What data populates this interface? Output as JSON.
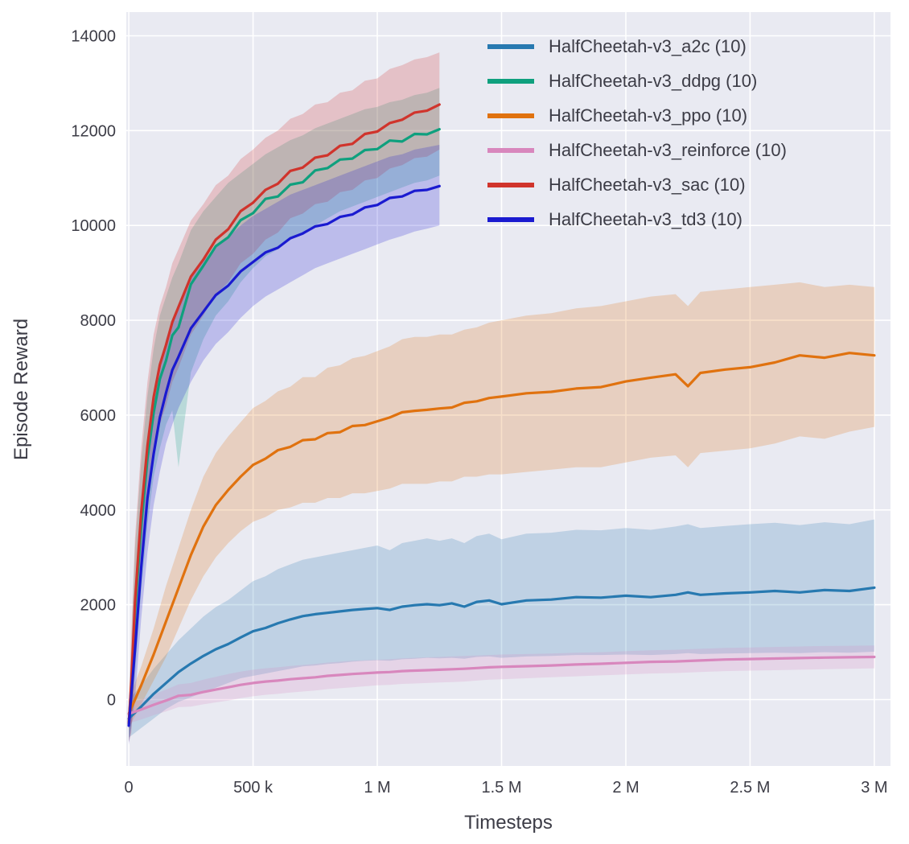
{
  "chart_data": {
    "type": "line",
    "title": "",
    "xlabel": "Timesteps",
    "ylabel": "Episode Reward",
    "xlim": [
      -10000,
      3065000
    ],
    "ylim": [
      -1400,
      14500
    ],
    "grid": true,
    "background": "#e9eaf2",
    "grid_color": "#ffffff",
    "text_color": "#3c3c46",
    "legend_position": "top-right",
    "x_ticks": [
      {
        "v": 0,
        "label": "0"
      },
      {
        "v": 500000,
        "label": "500 k"
      },
      {
        "v": 1000000,
        "label": "1 M"
      },
      {
        "v": 1500000,
        "label": "1.5 M"
      },
      {
        "v": 2000000,
        "label": "2 M"
      },
      {
        "v": 2500000,
        "label": "2.5 M"
      },
      {
        "v": 3000000,
        "label": "3 M"
      }
    ],
    "y_ticks": [
      {
        "v": 0,
        "label": "0"
      },
      {
        "v": 2000,
        "label": "2000"
      },
      {
        "v": 4000,
        "label": "4000"
      },
      {
        "v": 6000,
        "label": "6000"
      },
      {
        "v": 8000,
        "label": "8000"
      },
      {
        "v": 10000,
        "label": "10000"
      },
      {
        "v": 12000,
        "label": "12000"
      },
      {
        "v": 14000,
        "label": "14000"
      }
    ],
    "series": [
      {
        "name": "HalfCheetah-v3_a2c (10)",
        "color": "#2779b0",
        "x": [
          0,
          50000,
          100000,
          150000,
          200000,
          250000,
          300000,
          350000,
          400000,
          450000,
          500000,
          550000,
          600000,
          650000,
          700000,
          750000,
          800000,
          850000,
          900000,
          950000,
          1000000,
          1050000,
          1100000,
          1150000,
          1200000,
          1250000,
          1300000,
          1350000,
          1400000,
          1450000,
          1500000,
          1600000,
          1700000,
          1800000,
          1900000,
          2000000,
          2100000,
          2200000,
          2250000,
          2300000,
          2400000,
          2500000,
          2600000,
          2700000,
          2800000,
          2900000,
          3000000
        ],
        "mean": [
          -400,
          -150,
          120,
          350,
          580,
          760,
          920,
          1060,
          1170,
          1310,
          1440,
          1510,
          1610,
          1690,
          1760,
          1800,
          1830,
          1860,
          1890,
          1910,
          1930,
          1890,
          1960,
          1990,
          2010,
          1990,
          2030,
          1960,
          2060,
          2090,
          2010,
          2090,
          2110,
          2160,
          2150,
          2190,
          2160,
          2210,
          2260,
          2210,
          2240,
          2260,
          2290,
          2260,
          2310,
          2290,
          2360
        ],
        "lower": [
          -800,
          -600,
          -400,
          -200,
          -50,
          50,
          150,
          250,
          350,
          450,
          500,
          550,
          600,
          650,
          700,
          720,
          750,
          770,
          800,
          820,
          830,
          820,
          850,
          860,
          880,
          870,
          880,
          860,
          900,
          910,
          880,
          910,
          920,
          940,
          940,
          950,
          940,
          960,
          980,
          960,
          970,
          980,
          990,
          980,
          1000,
          990,
          1010
        ],
        "upper": [
          0,
          300,
          650,
          950,
          1250,
          1500,
          1750,
          1950,
          2100,
          2300,
          2500,
          2600,
          2750,
          2850,
          2950,
          3000,
          3050,
          3100,
          3150,
          3200,
          3250,
          3150,
          3300,
          3350,
          3400,
          3350,
          3400,
          3300,
          3450,
          3500,
          3380,
          3500,
          3520,
          3580,
          3570,
          3620,
          3580,
          3650,
          3700,
          3620,
          3660,
          3700,
          3730,
          3680,
          3740,
          3700,
          3800
        ]
      },
      {
        "name": "HalfCheetah-v3_ddpg (10)",
        "color": "#0fa07e",
        "x": [
          0,
          10000,
          25000,
          50000,
          75000,
          100000,
          125000,
          150000,
          175000,
          200000,
          250000,
          300000,
          350000,
          400000,
          450000,
          500000,
          550000,
          600000,
          650000,
          700000,
          750000,
          800000,
          850000,
          900000,
          950000,
          1000000,
          1050000,
          1100000,
          1150000,
          1200000,
          1250000
        ],
        "mean": [
          -500,
          250,
          1850,
          3650,
          5080,
          6050,
          6760,
          7150,
          7680,
          7850,
          8760,
          9150,
          9560,
          9750,
          10110,
          10260,
          10560,
          10610,
          10860,
          10910,
          11160,
          11210,
          11390,
          11410,
          11590,
          11610,
          11790,
          11770,
          11930,
          11920,
          12030
        ],
        "lower": [
          -900,
          -500,
          500,
          2300,
          3700,
          4700,
          5300,
          5800,
          6100,
          4900,
          6900,
          7600,
          8100,
          8400,
          8800,
          9100,
          9350,
          9500,
          9700,
          9850,
          10000,
          10150,
          10300,
          10400,
          10500,
          10600,
          10700,
          10800,
          10900,
          10950,
          11050
        ],
        "upper": [
          -100,
          1100,
          3200,
          5000,
          6400,
          7400,
          8100,
          8500,
          8900,
          9200,
          9900,
          10300,
          10600,
          10900,
          11100,
          11300,
          11500,
          11650,
          11800,
          11900,
          12050,
          12150,
          12250,
          12350,
          12450,
          12500,
          12600,
          12650,
          12750,
          12800,
          12900
        ]
      },
      {
        "name": "HalfCheetah-v3_ppo (10)",
        "color": "#e0720f",
        "x": [
          0,
          50000,
          100000,
          150000,
          200000,
          250000,
          300000,
          350000,
          400000,
          450000,
          500000,
          550000,
          600000,
          650000,
          700000,
          750000,
          800000,
          850000,
          900000,
          950000,
          1000000,
          1050000,
          1100000,
          1150000,
          1200000,
          1250000,
          1300000,
          1350000,
          1400000,
          1450000,
          1500000,
          1600000,
          1700000,
          1800000,
          1900000,
          2000000,
          2100000,
          2200000,
          2250000,
          2300000,
          2400000,
          2500000,
          2600000,
          2700000,
          2800000,
          2900000,
          3000000
        ],
        "mean": [
          -300,
          300,
          950,
          1650,
          2350,
          3050,
          3650,
          4100,
          4420,
          4700,
          4950,
          5080,
          5260,
          5330,
          5470,
          5490,
          5620,
          5640,
          5770,
          5790,
          5870,
          5950,
          6060,
          6090,
          6110,
          6140,
          6160,
          6260,
          6290,
          6360,
          6390,
          6460,
          6490,
          6560,
          6590,
          6710,
          6790,
          6860,
          6610,
          6890,
          6960,
          7010,
          7110,
          7260,
          7210,
          7310,
          7260
        ],
        "lower": [
          -600,
          -100,
          400,
          900,
          1500,
          2100,
          2600,
          3000,
          3300,
          3550,
          3750,
          3850,
          4000,
          4050,
          4150,
          4150,
          4250,
          4250,
          4350,
          4350,
          4400,
          4450,
          4550,
          4550,
          4550,
          4600,
          4600,
          4700,
          4700,
          4750,
          4750,
          4800,
          4850,
          4900,
          4900,
          5000,
          5100,
          5150,
          4900,
          5200,
          5250,
          5300,
          5400,
          5550,
          5500,
          5650,
          5750
        ],
        "upper": [
          0,
          700,
          1500,
          2400,
          3200,
          4000,
          4700,
          5200,
          5550,
          5850,
          6150,
          6300,
          6500,
          6600,
          6800,
          6800,
          7000,
          7050,
          7200,
          7250,
          7350,
          7450,
          7600,
          7650,
          7650,
          7700,
          7700,
          7800,
          7850,
          7950,
          8000,
          8100,
          8150,
          8250,
          8300,
          8400,
          8500,
          8550,
          8300,
          8600,
          8650,
          8700,
          8750,
          8800,
          8700,
          8750,
          8700
        ]
      },
      {
        "name": "HalfCheetah-v3_reinforce (10)",
        "color": "#d887bd",
        "x": [
          0,
          50000,
          100000,
          150000,
          200000,
          250000,
          300000,
          350000,
          400000,
          450000,
          500000,
          550000,
          600000,
          650000,
          700000,
          750000,
          800000,
          850000,
          900000,
          950000,
          1000000,
          1050000,
          1100000,
          1150000,
          1200000,
          1250000,
          1300000,
          1350000,
          1400000,
          1450000,
          1500000,
          1600000,
          1700000,
          1800000,
          1900000,
          2000000,
          2100000,
          2200000,
          2250000,
          2300000,
          2400000,
          2500000,
          2600000,
          2700000,
          2800000,
          2900000,
          3000000
        ],
        "mean": [
          -300,
          -210,
          -110,
          -20,
          80,
          100,
          160,
          210,
          260,
          310,
          350,
          380,
          400,
          430,
          450,
          470,
          500,
          520,
          540,
          555,
          570,
          580,
          600,
          610,
          620,
          630,
          640,
          650,
          665,
          680,
          690,
          705,
          720,
          740,
          755,
          775,
          795,
          805,
          815,
          825,
          845,
          855,
          865,
          875,
          885,
          892,
          900
        ],
        "lower": [
          -500,
          -420,
          -330,
          -250,
          -160,
          -150,
          -100,
          -60,
          -20,
          30,
          70,
          100,
          120,
          150,
          170,
          190,
          220,
          240,
          260,
          280,
          300,
          310,
          330,
          340,
          350,
          360,
          370,
          380,
          400,
          420,
          430,
          450,
          470,
          490,
          510,
          530,
          550,
          560,
          570,
          580,
          600,
          610,
          620,
          630,
          640,
          650,
          660
        ],
        "upper": [
          -100,
          0,
          110,
          210,
          320,
          350,
          420,
          480,
          540,
          590,
          630,
          660,
          680,
          710,
          730,
          750,
          780,
          800,
          820,
          830,
          840,
          850,
          870,
          880,
          890,
          900,
          910,
          920,
          930,
          940,
          950,
          960,
          970,
          990,
          1000,
          1020,
          1040,
          1050,
          1060,
          1070,
          1090,
          1100,
          1110,
          1120,
          1130,
          1135,
          1140
        ]
      },
      {
        "name": "HalfCheetah-v3_sac (10)",
        "color": "#d0342c",
        "x": [
          0,
          10000,
          25000,
          50000,
          75000,
          100000,
          125000,
          150000,
          175000,
          200000,
          250000,
          300000,
          350000,
          400000,
          450000,
          500000,
          550000,
          600000,
          650000,
          700000,
          750000,
          800000,
          850000,
          900000,
          950000,
          1000000,
          1050000,
          1100000,
          1150000,
          1200000,
          1250000
        ],
        "mean": [
          -500,
          350,
          2050,
          3950,
          5350,
          6380,
          7060,
          7480,
          7960,
          8280,
          8920,
          9280,
          9700,
          9920,
          10300,
          10480,
          10750,
          10880,
          11150,
          11220,
          11430,
          11480,
          11680,
          11720,
          11930,
          11980,
          12160,
          12230,
          12380,
          12420,
          12550
        ],
        "lower": [
          -900,
          -700,
          700,
          2600,
          4000,
          5100,
          5800,
          6200,
          6700,
          7000,
          7700,
          8100,
          8550,
          8800,
          9200,
          9400,
          9700,
          9850,
          10150,
          10250,
          10450,
          10500,
          10700,
          10750,
          10950,
          11000,
          11200,
          11270,
          11420,
          11450,
          11600
        ],
        "upper": [
          -100,
          1400,
          3400,
          5300,
          6700,
          7700,
          8300,
          8700,
          9200,
          9500,
          10100,
          10450,
          10850,
          11050,
          11400,
          11600,
          11850,
          12000,
          12250,
          12350,
          12550,
          12600,
          12800,
          12850,
          13050,
          13100,
          13300,
          13380,
          13500,
          13550,
          13650
        ]
      },
      {
        "name": "HalfCheetah-v3_td3 (10)",
        "color": "#1a1ad0",
        "x": [
          0,
          10000,
          25000,
          50000,
          75000,
          100000,
          125000,
          150000,
          175000,
          200000,
          250000,
          300000,
          350000,
          400000,
          450000,
          500000,
          550000,
          600000,
          650000,
          700000,
          750000,
          800000,
          850000,
          900000,
          950000,
          1000000,
          1050000,
          1100000,
          1150000,
          1200000,
          1250000
        ],
        "mean": [
          -550,
          100,
          1050,
          2780,
          4250,
          5180,
          5950,
          6470,
          6950,
          7230,
          7830,
          8180,
          8530,
          8730,
          9030,
          9230,
          9430,
          9530,
          9730,
          9830,
          9980,
          10030,
          10180,
          10230,
          10380,
          10430,
          10580,
          10610,
          10730,
          10750,
          10830
        ],
        "lower": [
          -950,
          -600,
          0,
          1700,
          3100,
          4100,
          4800,
          5400,
          5800,
          6150,
          6700,
          7150,
          7500,
          7750,
          8050,
          8300,
          8500,
          8650,
          8800,
          8950,
          9100,
          9200,
          9300,
          9400,
          9500,
          9600,
          9700,
          9780,
          9870,
          9930,
          10000
        ],
        "upper": [
          -150,
          800,
          2100,
          3900,
          5300,
          6300,
          7000,
          7600,
          8000,
          8350,
          8900,
          9250,
          9550,
          9750,
          10000,
          10200,
          10350,
          10500,
          10650,
          10750,
          10850,
          10950,
          11050,
          11150,
          11250,
          11350,
          11450,
          11500,
          11600,
          11650,
          11700
        ]
      }
    ]
  }
}
